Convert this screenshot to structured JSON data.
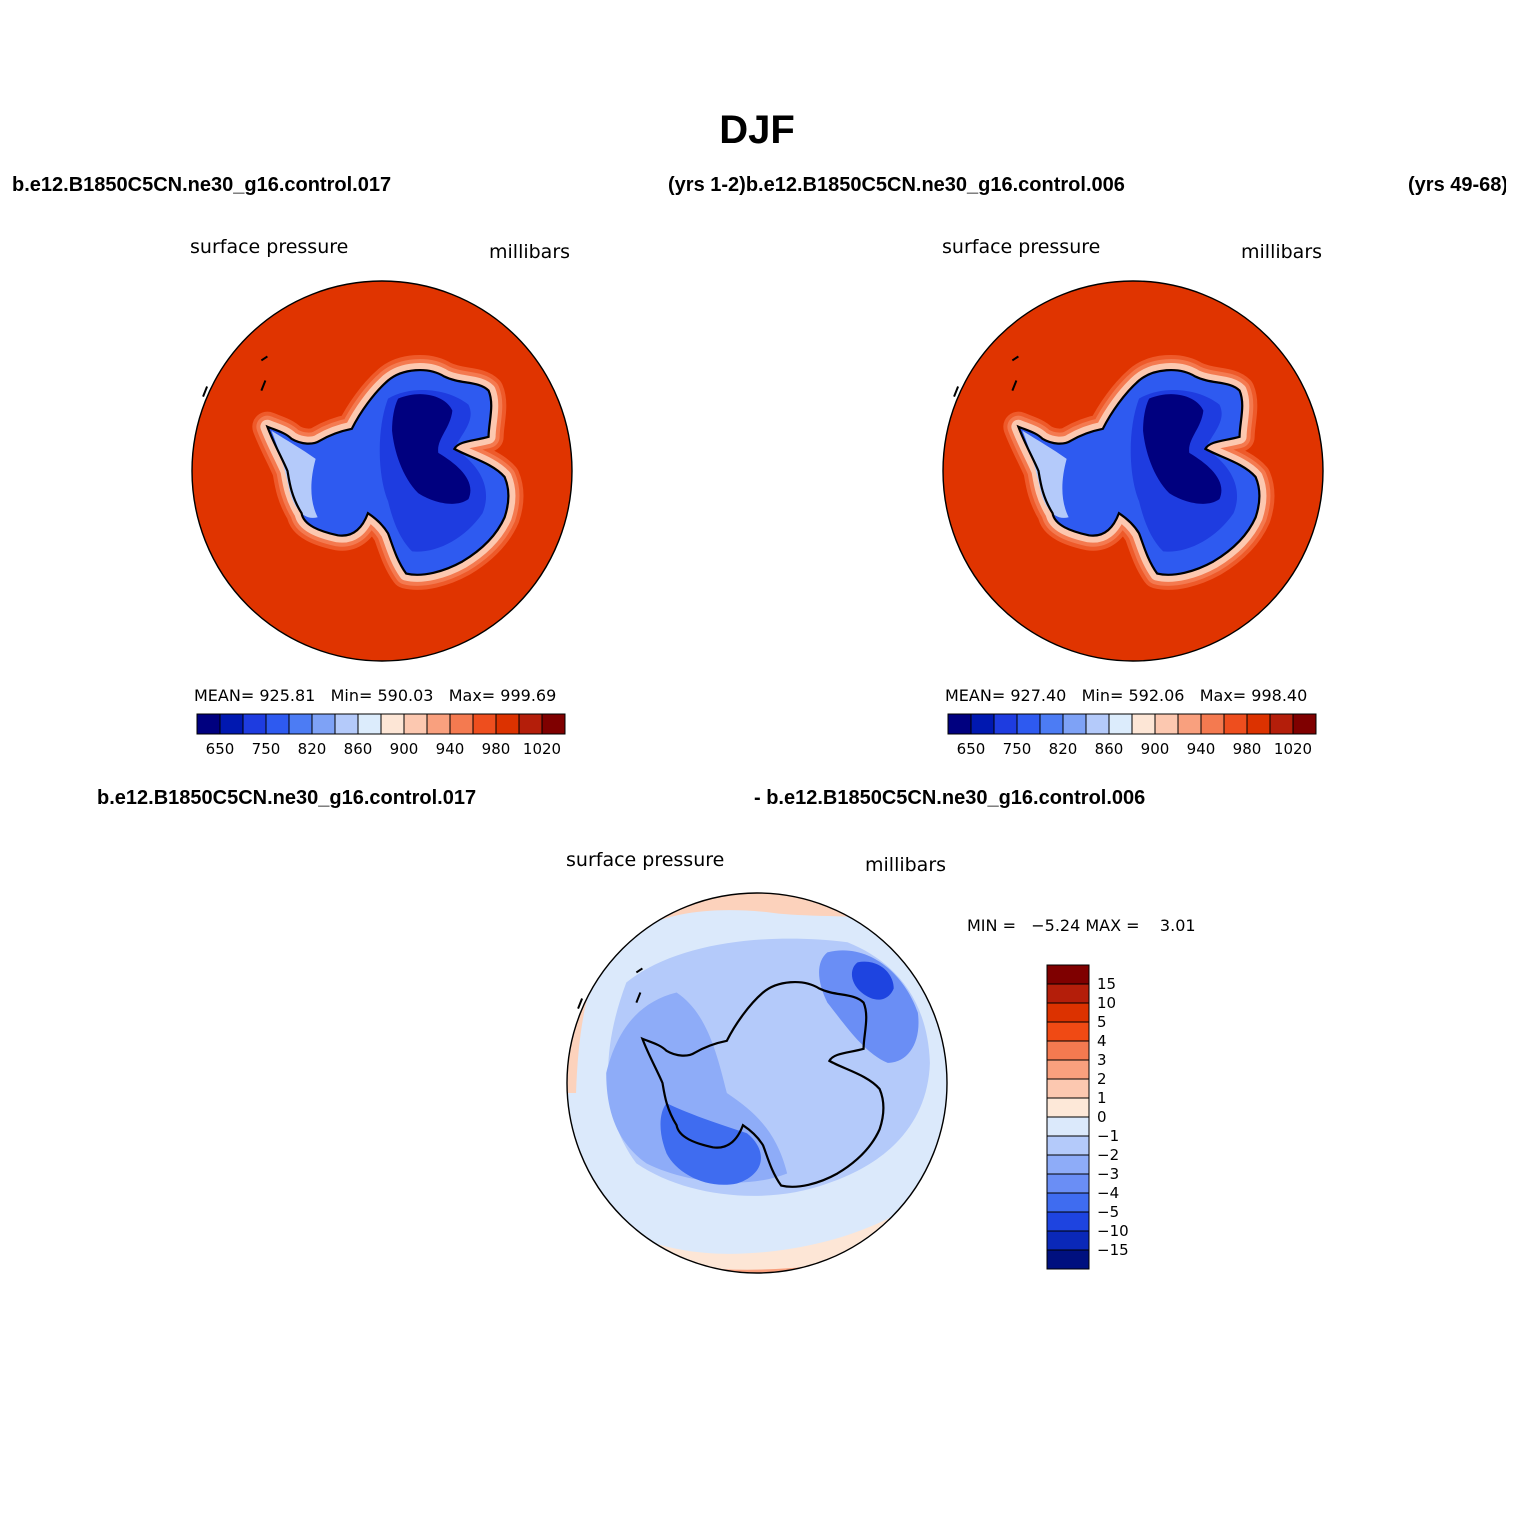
{
  "title": "DJF",
  "header": {
    "case_left": "b.e12.B1850C5CN.ne30_g16.control.017",
    "case_mid": "(yrs 1-2)b.e12.B1850C5CN.ne30_g16.control.006",
    "case_right": "(yrs 49-68)"
  },
  "panels": [
    {
      "variable": "surface pressure",
      "units": "millibars",
      "stats": {
        "mean_label": "MEAN=",
        "mean": "925.81",
        "min_label": "Min=",
        "min": "590.03",
        "max_label": "Max=",
        "max": "999.69"
      }
    },
    {
      "variable": "surface pressure",
      "units": "millibars",
      "stats": {
        "mean_label": "MEAN=",
        "mean": "927.40",
        "min_label": "Min=",
        "min": "592.06",
        "max_label": "Max=",
        "max": "998.40"
      }
    }
  ],
  "diff": {
    "case_a": "b.e12.B1850C5CN.ne30_g16.control.017",
    "case_b": "- b.e12.B1850C5CN.ne30_g16.control.006",
    "variable": "surface pressure",
    "units": "millibars",
    "min_label": "MIN =",
    "min": "−5.24",
    "max_label": "MAX =",
    "max": "3.01"
  },
  "chart_data": [
    {
      "type": "heatmap",
      "title": "surface pressure",
      "units": "millibars",
      "projection": "south polar stereographic",
      "colorbar": {
        "orientation": "horizontal",
        "tick_labels": [
          "650",
          "750",
          "820",
          "860",
          "900",
          "940",
          "980",
          "1020"
        ],
        "colors": [
          "#00007f",
          "#0018b0",
          "#1e3ce0",
          "#2e5af0",
          "#4c7cf4",
          "#7ea2f6",
          "#b4cafa",
          "#dcecfc",
          "#fde6d6",
          "#fcc8b0",
          "#f9a07e",
          "#f47a50",
          "#ee4e1e",
          "#dc3200",
          "#b41e0a",
          "#7f0000"
        ]
      },
      "stats": {
        "mean": 925.81,
        "min": 590.03,
        "max": 999.69
      }
    },
    {
      "type": "heatmap",
      "title": "surface pressure",
      "units": "millibars",
      "projection": "south polar stereographic",
      "colorbar": {
        "orientation": "horizontal",
        "tick_labels": [
          "650",
          "750",
          "820",
          "860",
          "900",
          "940",
          "980",
          "1020"
        ],
        "colors": [
          "#00007f",
          "#0018b0",
          "#1e3ce0",
          "#2e5af0",
          "#4c7cf4",
          "#7ea2f6",
          "#b4cafa",
          "#dcecfc",
          "#fde6d6",
          "#fcc8b0",
          "#f9a07e",
          "#f47a50",
          "#ee4e1e",
          "#dc3200",
          "#b41e0a",
          "#7f0000"
        ]
      },
      "stats": {
        "mean": 927.4,
        "min": 592.06,
        "max": 998.4
      }
    },
    {
      "type": "heatmap",
      "title": "surface pressure",
      "units": "millibars",
      "projection": "south polar stereographic",
      "colorbar": {
        "orientation": "vertical",
        "tick_labels": [
          "15",
          "10",
          "5",
          "4",
          "3",
          "2",
          "1",
          "0",
          "−1",
          "−2",
          "−3",
          "−4",
          "−5",
          "−10",
          "−15"
        ],
        "colors_top_to_bottom": [
          "#7f0000",
          "#b41e0a",
          "#dc3200",
          "#f04a14",
          "#f47a50",
          "#f9a07e",
          "#fcc8b0",
          "#fde8d8",
          "#dbe9fb",
          "#b4cafa",
          "#8eacf8",
          "#6a8ef5",
          "#3f6cf0",
          "#1e44e0",
          "#0a28b8",
          "#00107f"
        ]
      },
      "stats": {
        "min": -5.24,
        "max": 3.01
      }
    }
  ]
}
